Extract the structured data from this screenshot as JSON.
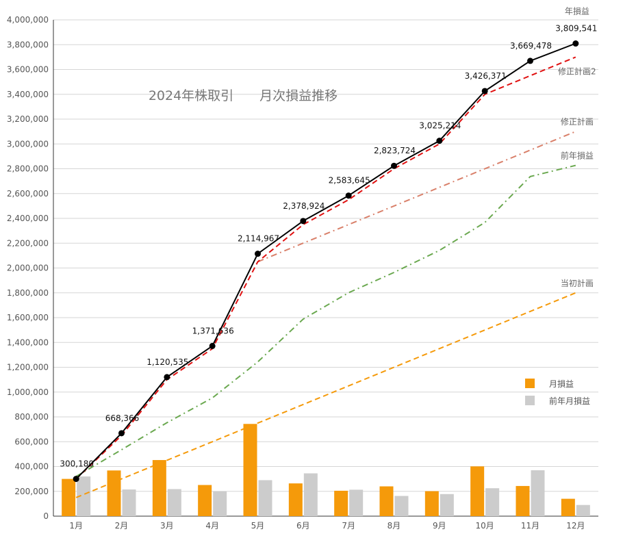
{
  "chart_data": {
    "type": "bar",
    "title": "2024年株取引　　月次損益推移",
    "categories": [
      "1月",
      "2月",
      "3月",
      "4月",
      "5月",
      "6月",
      "7月",
      "8月",
      "9月",
      "10月",
      "11月",
      "12月"
    ],
    "ylim": [
      0,
      4000000
    ],
    "yticks": [
      0,
      200000,
      400000,
      600000,
      800000,
      1000000,
      1200000,
      1400000,
      1600000,
      1800000,
      2000000,
      2200000,
      2400000,
      2600000,
      2800000,
      3000000,
      3200000,
      3400000,
      3600000,
      3800000,
      4000000
    ],
    "ytick_labels": [
      "0",
      "200,000",
      "400,000",
      "600,000",
      "800,000",
      "1,000,000",
      "1,200,000",
      "1,400,000",
      "1,600,000",
      "1,800,000",
      "2,000,000",
      "2,200,000",
      "2,400,000",
      "2,600,000",
      "2,800,000",
      "3,000,000",
      "3,200,000",
      "3,400,000",
      "3,600,000",
      "3,800,000",
      "4,000,000"
    ],
    "grid": true,
    "legend_position": "right",
    "bar_series": [
      {
        "name": "月損益",
        "color": "#F59A0A",
        "values": [
          300180,
          368186,
          452169,
          251101,
          743331,
          263957,
          204721,
          240079,
          201490,
          401157,
          243107,
          140063
        ]
      },
      {
        "name": "前年月損益",
        "color": "#CCCCCC",
        "values": [
          320000,
          215000,
          218000,
          200000,
          290000,
          345000,
          213000,
          163000,
          178000,
          225000,
          370000,
          90000
        ]
      }
    ],
    "line_series": [
      {
        "name": "年損益",
        "color": "#000000",
        "style": "solid",
        "markers": true,
        "values": [
          300180,
          668366,
          1120535,
          1371636,
          2114967,
          2378924,
          2583645,
          2823724,
          3025214,
          3426371,
          3669478,
          3809541
        ],
        "labels": [
          "300,180",
          "668,366",
          "1,120,535",
          "1,371,636",
          "2,114,967",
          "2,378,924",
          "2,583,645",
          "2,823,724",
          "3,025,214",
          "3,426,371",
          "3,669,478",
          "3,809,541"
        ]
      },
      {
        "name": "修正計画2",
        "color": "#E01010",
        "style": "dashed",
        "values": [
          300000,
          650000,
          1100000,
          1350000,
          2050000,
          2350000,
          2550000,
          2800000,
          3000000,
          3400000,
          3550000,
          3700000
        ]
      },
      {
        "name": "修正計画",
        "color": "#D9806A",
        "style": "dashdot",
        "start_index": 4,
        "values": [
          null,
          null,
          null,
          null,
          2050000,
          2200000,
          2350000,
          2500000,
          2650000,
          2800000,
          2950000,
          3100000
        ]
      },
      {
        "name": "前年損益",
        "color": "#6AA84F",
        "style": "dashdot",
        "values": [
          320000,
          535000,
          753000,
          953000,
          1243000,
          1588000,
          1801000,
          1964000,
          2142000,
          2367000,
          2737000,
          2827000
        ]
      },
      {
        "name": "当初計画",
        "color": "#F59A0A",
        "style": "dashed",
        "values": [
          150000,
          300000,
          450000,
          600000,
          750000,
          900000,
          1050000,
          1200000,
          1350000,
          1500000,
          1650000,
          1800000
        ]
      }
    ]
  }
}
